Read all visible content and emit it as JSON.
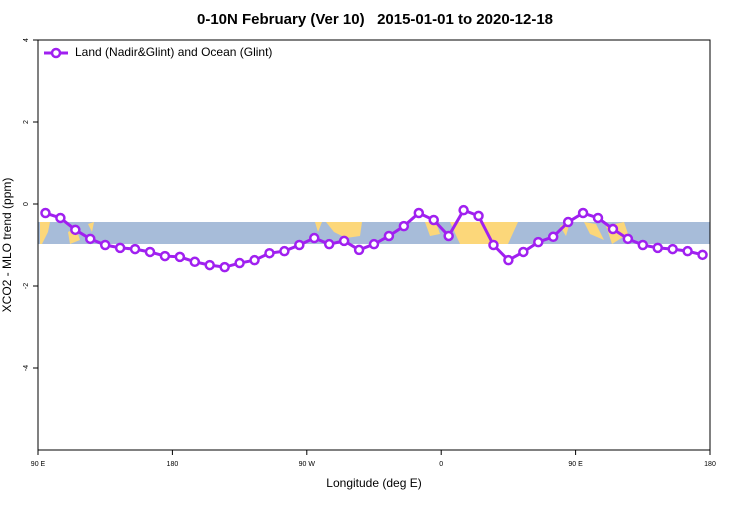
{
  "chart_data": {
    "type": "line",
    "title": "0-10N February (Ver 10)   2015-01-01 to 2020-12-18",
    "x_label": "Longitude (deg E)",
    "y_label": "XCO2 - MLO trend (ppm)",
    "x": [
      95,
      105,
      115,
      125,
      135,
      145,
      155,
      165,
      175,
      185,
      195,
      205,
      215,
      225,
      235,
      245,
      255,
      265,
      275,
      285,
      295,
      305,
      315,
      325,
      335,
      345,
      355,
      365,
      375,
      385,
      395,
      405,
      415,
      425,
      435,
      445,
      455,
      465,
      475,
      485,
      495,
      505,
      515,
      525,
      535
    ],
    "series": [
      {
        "name": "Land (Nadir&Glint) and Ocean (Glint)",
        "color": "#a020f0",
        "values": [
          -0.22,
          -0.34,
          -0.63,
          -0.85,
          -1.0,
          -1.07,
          -1.1,
          -1.17,
          -1.27,
          -1.29,
          -1.41,
          -1.49,
          -1.54,
          -1.44,
          -1.37,
          -1.2,
          -1.15,
          -1.0,
          -0.83,
          -0.98,
          -0.9,
          -1.12,
          -0.98,
          -0.78,
          -0.54,
          -0.22,
          -0.39,
          -0.78,
          -0.15,
          -0.29,
          -1.0,
          -1.37,
          -1.17,
          -0.93,
          -0.8,
          -0.44,
          -0.22,
          -0.34,
          -0.61,
          -0.85,
          -1.0,
          -1.07,
          -1.1,
          -1.15,
          -1.24
        ]
      }
    ],
    "xlim": [
      90,
      540
    ],
    "xticks": [
      {
        "value": 90,
        "label": "90 E"
      },
      180,
      {
        "value": 270,
        "label": "90 W"
      },
      {
        "value": 360,
        "label": "0"
      },
      {
        "value": 450,
        "label": "90 E"
      },
      {
        "value": 540,
        "label": "180"
      }
    ],
    "ylim": [
      -6,
      4
    ],
    "yticks": [
      -4,
      -2,
      0,
      2,
      4
    ],
    "legend_position": "top-left"
  }
}
